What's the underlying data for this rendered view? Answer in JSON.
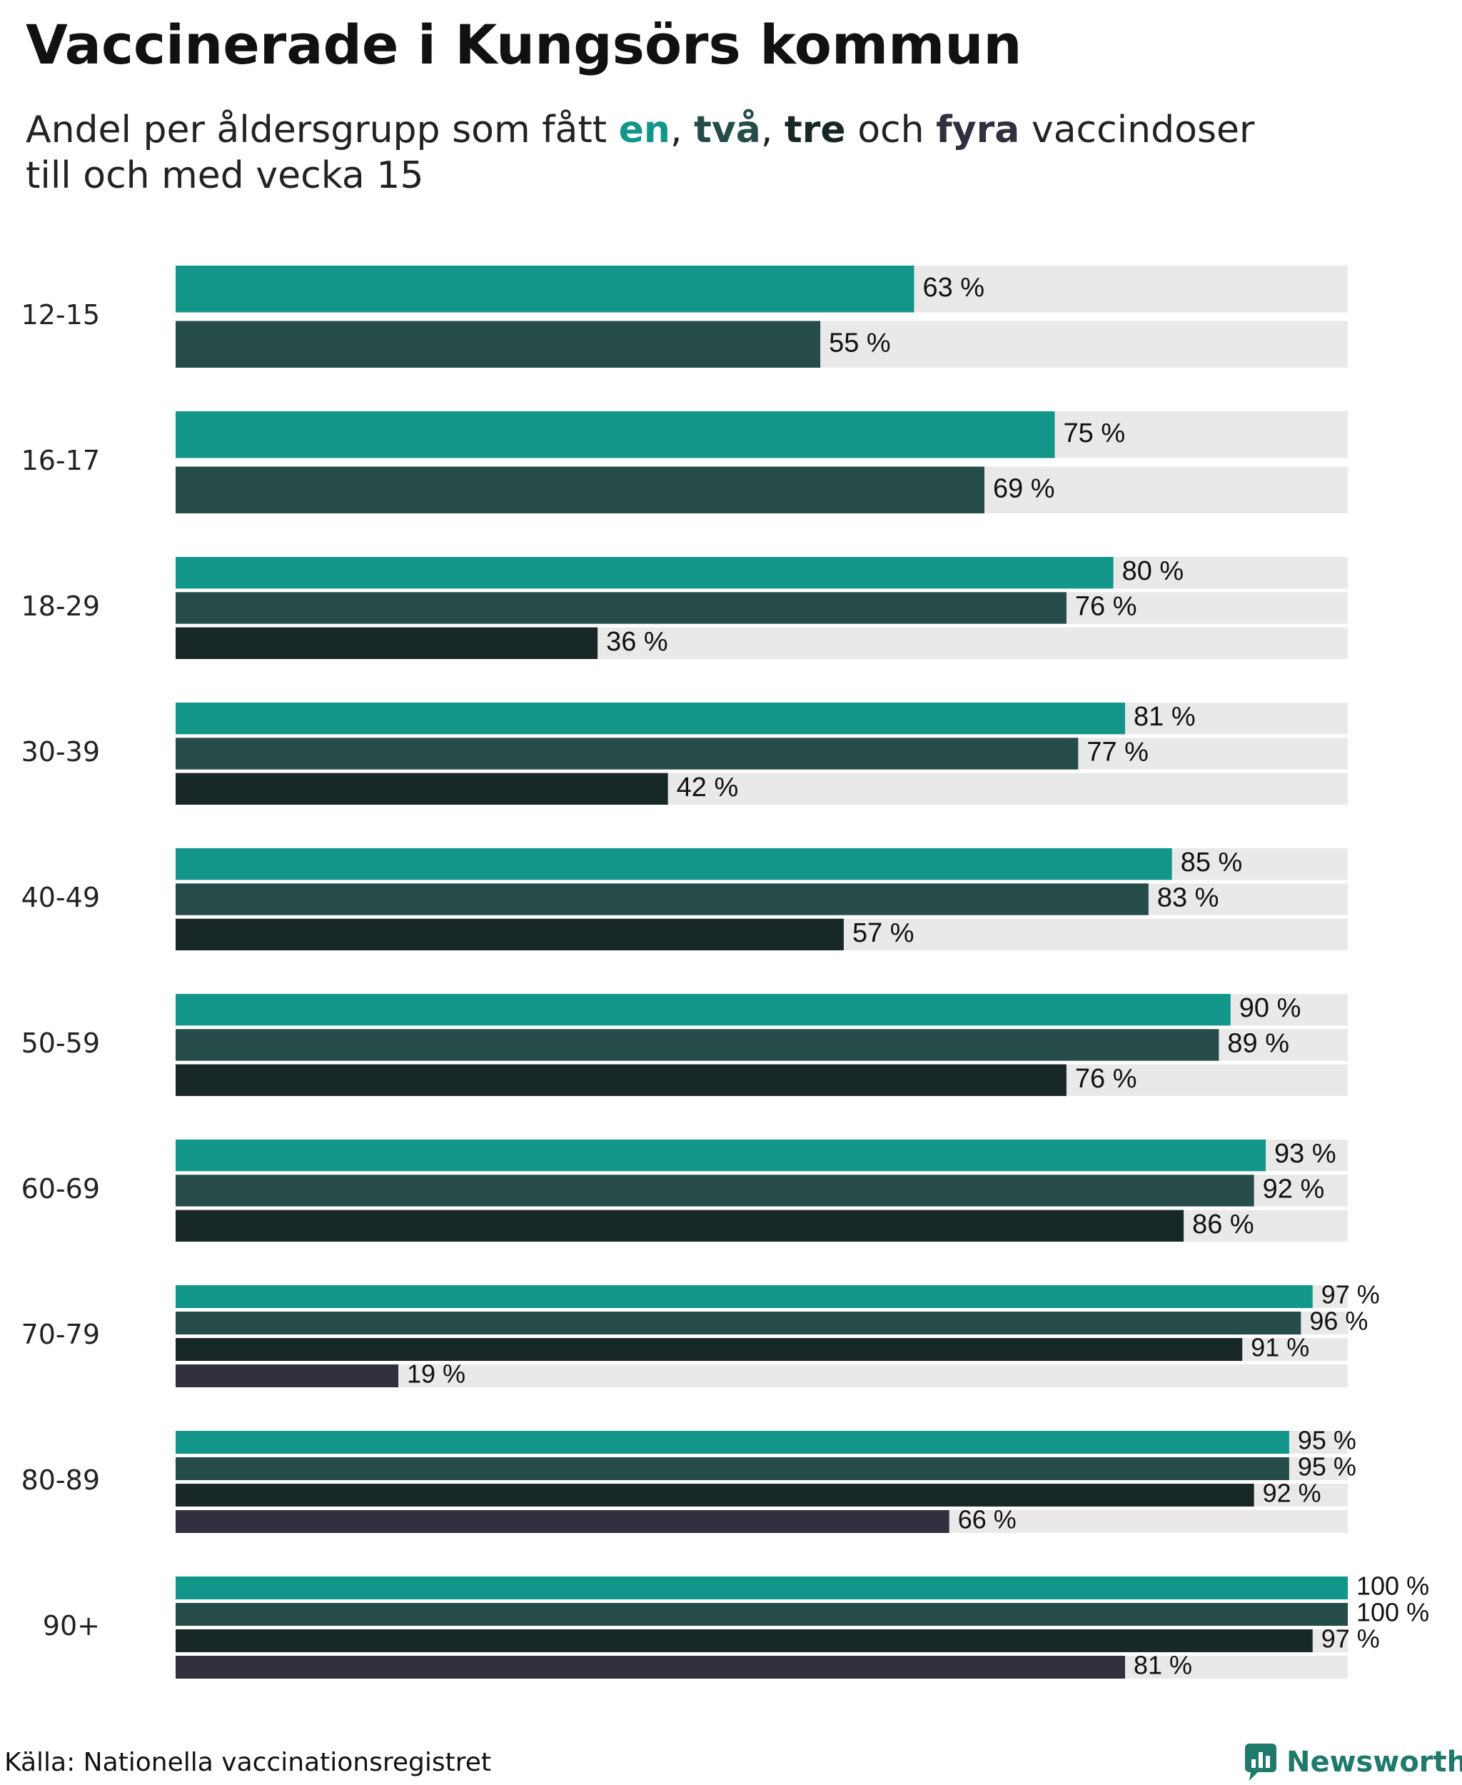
{
  "title": "Vaccinerade i Kungsörs kommun",
  "subtitle": {
    "prefix": "Andel per åldersgrupp som fått ",
    "kw1": "en",
    "sep1": ", ",
    "kw2": "två",
    "sep2": ", ",
    "kw3": "tre",
    "sep3": " och ",
    "kw4": "fyra",
    "suffix": " vaccindoser",
    "line2": "till och med vecka 15"
  },
  "colors": {
    "dose1": "#13968a",
    "dose2": "#264c49",
    "dose3": "#182826",
    "dose4": "#30303e",
    "track": "#e9e9e9"
  },
  "chart_data": {
    "type": "bar",
    "orientation": "horizontal",
    "xlim": [
      0,
      100
    ],
    "value_suffix": " %",
    "series_names": [
      "en",
      "två",
      "tre",
      "fyra"
    ],
    "groups": [
      {
        "label": "12-15",
        "values": [
          63,
          55
        ]
      },
      {
        "label": "16-17",
        "values": [
          75,
          69
        ]
      },
      {
        "label": "18-29",
        "values": [
          80,
          76,
          36
        ]
      },
      {
        "label": "30-39",
        "values": [
          81,
          77,
          42
        ]
      },
      {
        "label": "40-49",
        "values": [
          85,
          83,
          57
        ]
      },
      {
        "label": "50-59",
        "values": [
          90,
          89,
          76
        ]
      },
      {
        "label": "60-69",
        "values": [
          93,
          92,
          86
        ]
      },
      {
        "label": "70-79",
        "values": [
          97,
          96,
          91,
          19
        ]
      },
      {
        "label": "80-89",
        "values": [
          95,
          95,
          92,
          66
        ]
      },
      {
        "label": "90+",
        "values": [
          100,
          100,
          97,
          81
        ]
      }
    ]
  },
  "footer": {
    "source": "Källa: Nationella vaccinationsregistret",
    "brand": "Newsworthy"
  }
}
